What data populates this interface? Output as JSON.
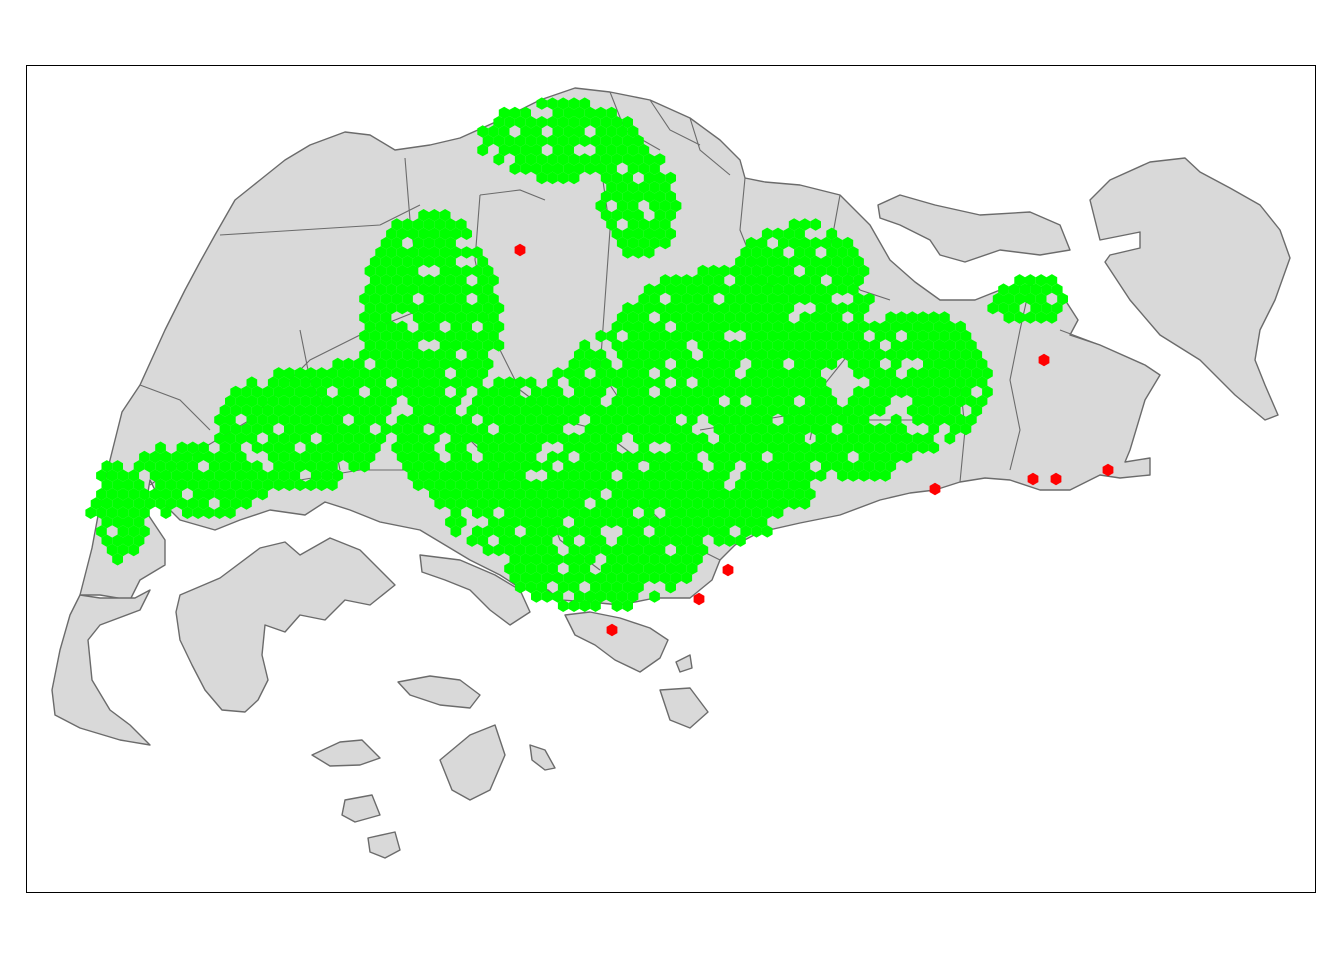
{
  "map": {
    "type": "hexagon-grid-map",
    "legend": "none",
    "title": "",
    "colors": {
      "background": "#ffffff",
      "land": "#d9d9d9",
      "boundary": "#6b6b6b",
      "frame": "#000000",
      "covered_cell": "#00ff00",
      "uncovered_cell": "#ff0000"
    }
  }
}
